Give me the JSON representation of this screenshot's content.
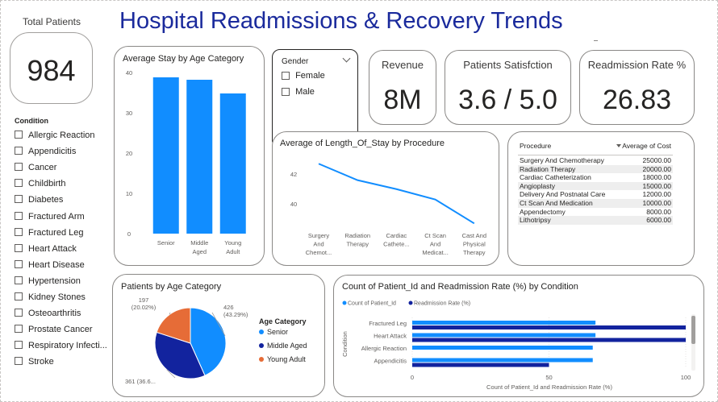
{
  "title": "Hospital Readmissions & Recovery Trends",
  "total_patients": {
    "label": "Total Patients",
    "value": "984"
  },
  "condition_slicer": {
    "label": "Condition",
    "items": [
      "Allergic Reaction",
      "Appendicitis",
      "Cancer",
      "Childbirth",
      "Diabetes",
      "Fractured Arm",
      "Fractured Leg",
      "Heart Attack",
      "Heart Disease",
      "Hypertension",
      "Kidney Stones",
      "Osteoarthritis",
      "Prostate Cancer",
      "Respiratory Infecti...",
      "Stroke"
    ]
  },
  "gender_slicer": {
    "label": "Gender",
    "items": [
      "Female",
      "Male"
    ]
  },
  "kpis": {
    "revenue": {
      "label": "Revenue",
      "value": "8M"
    },
    "satisfaction": {
      "label": "Patients Satisfction",
      "value": "3.6 / 5.0"
    },
    "readmission": {
      "label": "Readmission Rate %",
      "value": "26.83"
    }
  },
  "procedure_table": {
    "headers": [
      "Procedure",
      "Average of Cost"
    ],
    "rows": [
      {
        "name": "Surgery And Chemotherapy",
        "value": "25000.00"
      },
      {
        "name": "Radiation Therapy",
        "value": "20000.00"
      },
      {
        "name": "Cardiac Catheterization",
        "value": "18000.00"
      },
      {
        "name": "Angioplasty",
        "value": "15000.00"
      },
      {
        "name": "Delivery And Postnatal Care",
        "value": "12000.00"
      },
      {
        "name": "Ct Scan And Medication",
        "value": "10000.00"
      },
      {
        "name": "Appendectomy",
        "value": "8000.00"
      },
      {
        "name": "Lithotripsy",
        "value": "6000.00"
      }
    ]
  },
  "chart_data": [
    {
      "id": "avg-stay",
      "type": "bar",
      "title": "Average Stay by Age Category",
      "categories": [
        "Senior",
        "Middle Aged",
        "Young Adult"
      ],
      "category_lines": [
        [
          "Senior"
        ],
        [
          "Middle",
          "Aged"
        ],
        [
          "Young",
          "Adult"
        ]
      ],
      "values": [
        38.8,
        38.2,
        34.8
      ],
      "ylim": [
        0,
        40
      ],
      "yticks": [
        0,
        10,
        20,
        30,
        40
      ],
      "color": "#118DFF"
    },
    {
      "id": "los-procedure",
      "type": "line",
      "title": "Average of Length_Of_Stay by Procedure",
      "categories": [
        "Surgery And Chemot...",
        "Radiation Therapy",
        "Cardiac Cathete...",
        "Ct Scan And Medicat...",
        "Cast And Physical Therapy"
      ],
      "category_lines": [
        [
          "Surgery",
          "And",
          "Chemot..."
        ],
        [
          "Radiation",
          "Therapy"
        ],
        [
          "Cardiac",
          "Cathete..."
        ],
        [
          "Ct Scan",
          "And",
          "Medicat..."
        ],
        [
          "Cast And",
          "Physical",
          "Therapy"
        ]
      ],
      "values": [
        42.7,
        41.6,
        41.0,
        40.3,
        38.7
      ],
      "ylim": [
        38.5,
        43.2
      ],
      "yticks": [
        40,
        42
      ],
      "color": "#118DFF"
    },
    {
      "id": "age-pie",
      "type": "pie",
      "title": "Patients by Age Category",
      "legend_title": "Age Category",
      "slices": [
        {
          "name": "Senior",
          "value": 426,
          "label": "426",
          "pct": "(43.29%)",
          "color": "#118DFF"
        },
        {
          "name": "Middle Aged",
          "value": 361,
          "label": "361 (36.6...",
          "pct": "",
          "color": "#12239E"
        },
        {
          "name": "Young Adult",
          "value": 197,
          "label": "197",
          "pct": "(20.02%)",
          "color": "#E66C37"
        }
      ]
    },
    {
      "id": "condition-bars",
      "type": "bar",
      "orientation": "horizontal",
      "title": "Count of Patient_Id and Readmission Rate (%) by Condition",
      "xlabel": "Count of Patient_Id and Readmission Rate (%)",
      "ylabel": "Condition",
      "categories": [
        "Fractured Leg",
        "Heart Attack",
        "Allergic Reaction",
        "Appendicitis"
      ],
      "xlim": [
        0,
        100
      ],
      "xticks": [
        0,
        50,
        100
      ],
      "series": [
        {
          "name": "Count of Patient_Id",
          "color": "#118DFF",
          "values": [
            67,
            67,
            66,
            66
          ]
        },
        {
          "name": "Readmission Rate (%)",
          "color": "#12239E",
          "values": [
            100,
            100,
            0,
            50
          ]
        }
      ]
    }
  ]
}
